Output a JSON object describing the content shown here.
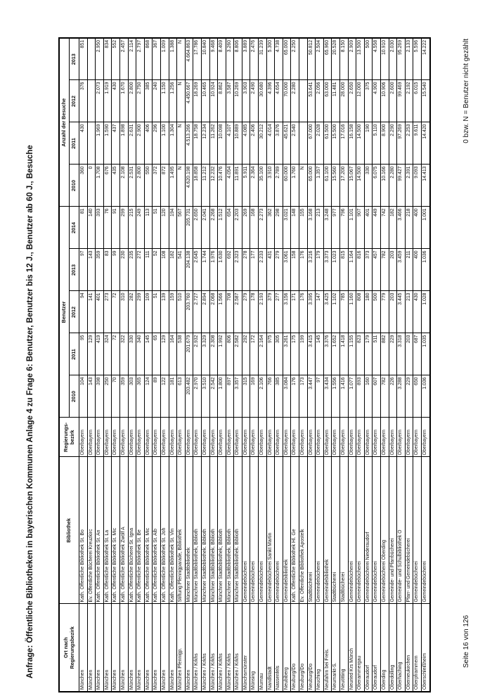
{
  "page": {
    "title": "Anfrage: Öffentliche Bibliotheken in bayerischen Kommunen Anlage 4 zu Frage 6: Benutzer, Benutzer bis 12 J., Benutzer ab 60 J., Besuche",
    "page_label": "Seite 16 von 126",
    "footnote": "0 bzw. N = Benutzer nicht gezählt"
  },
  "table": {
    "col_headers": {
      "ort": [
        "Ort nach",
        "Regierungsbezirk"
      ],
      "bibliothek": "Bibliothek",
      "regbez": [
        "Regierungs-",
        "bezirk"
      ]
    },
    "groups": [
      {
        "label": "Benutzer",
        "years": [
          "2010",
          "2011",
          "2012",
          "2013",
          "2014"
        ]
      },
      {
        "label": "Anzahl der Besuche",
        "years": [
          "2010",
          "2011",
          "2012",
          "2013"
        ]
      }
    ],
    "rows": [
      {
        "ort": "München",
        "bibliothek": "Kath. Öffentliche Bibliothek St. Bo",
        "bezirk": "Oberbayern",
        "benutzer": [
          "104",
          "95",
          "94",
          "97",
          "81"
        ],
        "besuche": [
          "360",
          "430",
          "376",
          "851"
        ]
      },
      {
        "ort": "München",
        "bibliothek": "Ev. Öffentliche Bücherei Kreuzkirc",
        "bezirk": "Oberbayern",
        "benutzer": [
          "143",
          "129",
          "141",
          "143",
          "140"
        ],
        "besuche": [
          "0",
          "",
          "",
          ""
        ]
      },
      {
        "ort": "München",
        "bibliothek": "Kath. Öffentliche Bibliothek St. An",
        "bezirk": "Oberbayern",
        "benutzer": [
          "398",
          "419",
          "401",
          "359",
          "393"
        ],
        "besuche": [
          "1.708",
          "1.969",
          "2.073",
          "2.950"
        ]
      },
      {
        "ort": "München",
        "bibliothek": "Kath. Öffentliche Bibliothek St. La",
        "bezirk": "Oberbayern",
        "benutzer": [
          "250",
          "324",
          "273",
          "83",
          "76"
        ],
        "besuche": [
          "676",
          "1.590",
          "1.919",
          "834"
        ]
      },
      {
        "ort": "München",
        "bibliothek": "Kath. Öffentliche Bibliothek St. Mic",
        "bezirk": "Oberbayern",
        "benutzer": [
          "70",
          "72",
          "72",
          "99",
          "91"
        ],
        "besuche": [
          "435",
          "437",
          "430",
          "552"
        ]
      },
      {
        "ort": "München",
        "bibliothek": "Kath. Öffentliche Bibliothek Zwölf A",
        "bezirk": "Oberbayern",
        "benutzer": [
          "359",
          "322",
          "310",
          "230",
          "299"
        ],
        "besuche": [
          "2.108",
          "1.898",
          "1.670",
          "2.457"
        ]
      },
      {
        "ort": "München",
        "bibliothek": "Kath. Öffentliche Bücherei St. Igna",
        "bezirk": "Oberbayern",
        "benutzer": [
          "303",
          "330",
          "282",
          "235",
          "215"
        ],
        "besuche": [
          "2.531",
          "2.631",
          "2.800",
          "2.114"
        ]
      },
      {
        "ort": "München",
        "bibliothek": "Kath. Öffentliche Bibliothek St. Be",
        "bezirk": "Oberbayern",
        "benutzer": [
          "365",
          "340",
          "299",
          "272",
          "249"
        ],
        "besuche": [
          "2.800",
          "2.900",
          "2.750",
          "2.797"
        ]
      },
      {
        "ort": "München",
        "bibliothek": "Kath. Öffentliche Bibliothek St. Mic",
        "bezirk": "Oberbayern",
        "benutzer": [
          "124",
          "145",
          "109",
          "111",
          "113"
        ],
        "besuche": [
          "550",
          "406",
          "385",
          "868"
        ]
      },
      {
        "ort": "München",
        "bibliothek": "Kath. Öffentliche Bibliothek St. Alb",
        "bezirk": "Oberbayern",
        "benutzer": [
          "89",
          "65",
          "51",
          "52",
          "51"
        ],
        "besuche": [
          "372",
          "296",
          "240",
          "367"
        ]
      },
      {
        "ort": "München",
        "bibliothek": "Kath. Öffentliche Bibliothek St. Joh",
        "bezirk": "Oberbayern",
        "benutzer": [
          "122",
          "129",
          "139",
          "108",
          "120"
        ],
        "besuche": [
          "872",
          "1.100",
          "1.150",
          "1.009"
        ]
      },
      {
        "ort": "München",
        "bibliothek": "Kath. Öffentliche Bibliothek St. Vin",
        "bezirk": "Oberbayern",
        "benutzer": [
          "181",
          "164",
          "159",
          "182",
          "194"
        ],
        "besuche": [
          "1.495",
          "1.304",
          "1.256",
          "1.388"
        ]
      },
      {
        "ort": "München Pfennigp.",
        "bibliothek": "Stiftung Pfennigparade, Bibliothek",
        "bezirk": "Oberbayern",
        "benutzer": [
          "613",
          "538",
          "510",
          "541",
          "567"
        ],
        "besuche": [
          "N",
          "N",
          "N",
          "N"
        ]
      },
      {
        "ort": "München",
        "bibliothek": "Münchner Stadtbibliothek",
        "bezirk": "Oberbayern",
        "benutzer": [
          "203.482",
          "201.679",
          "203.760",
          "204.138",
          "205.731"
        ],
        "besuche": [
          "4.620.198",
          "4.513.266",
          "4.450.667",
          "4.664.863"
        ]
      },
      {
        "ort": "München / Krkhs",
        "bibliothek": "Münchner Stadtbibliothek, Biblioth",
        "bezirk": "Oberbayern",
        "benutzer": [
          "2.970",
          "2.932",
          "2.727",
          "2.645",
          "2.650"
        ],
        "besuche": [
          "18.858",
          "18.758",
          "18.269",
          "17.786"
        ]
      },
      {
        "ort": "München / Krkhs",
        "bibliothek": "Münchner Stadtbibliothek. Biblioth",
        "bezirk": "Oberbayern",
        "benutzer": [
          "3.510",
          "3.329",
          "2.894",
          "1.744",
          "2.041"
        ],
        "besuche": [
          "11.212",
          "12.234",
          "10.465",
          "10.840"
        ]
      },
      {
        "ort": "München / Krkhs",
        "bibliothek": "Münchner Stadtbibliothek. Biblioth",
        "bezirk": "Oberbayern",
        "benutzer": [
          "2.542",
          "2.308",
          "2.068",
          "1.976",
          "2.268"
        ],
        "besuche": [
          "12.232",
          "11.262",
          "10.924",
          "9.468"
        ]
      },
      {
        "ort": "München / Krkhs",
        "bibliothek": "Münchner Stadtbibliothek, Biblioth",
        "bezirk": "Oberbayern",
        "benutzer": [
          "1.800",
          "1.992",
          "1.566",
          "1.630",
          "1.512"
        ],
        "besuche": [
          "10.476",
          "10.098",
          "8.862",
          "8.409"
        ]
      },
      {
        "ort": "München / Krkhs",
        "bibliothek": "Münchner Stadtbibliothek. Biblioth",
        "bezirk": "Oberbayern",
        "benutzer": [
          "897",
          "806",
          "708",
          "692",
          "654"
        ],
        "besuche": [
          "4.054",
          "4.107",
          "3.587",
          "3.260"
        ]
      },
      {
        "ort": "München / Krkhs",
        "bibliothek": "Münchner Stadtbibliothek. Biblioth",
        "bezirk": "Oberbayern",
        "benutzer": [
          "3.357",
          "2.582",
          "2.587",
          "2.323",
          "2.203"
        ],
        "besuche": [
          "11.891",
          "10.889",
          "10.269",
          "8.806"
        ]
      },
      {
        "ort": "Münchsmünster",
        "bibliothek": "Gemeindebücherei",
        "bezirk": "Oberbayern",
        "benutzer": [
          "315",
          "292",
          "279",
          "278",
          "269"
        ],
        "besuche": [
          "5.911",
          "4.085",
          "3.903",
          "3.889"
        ]
      },
      {
        "ort": "Münsing",
        "bibliothek": "Gemeindebücherei",
        "bezirk": "Oberbayern",
        "benutzer": [
          "169",
          "172",
          "178",
          "177",
          "168"
        ],
        "besuche": [
          "2.364",
          "2.406",
          "2.490",
          "2.476"
        ]
      },
      {
        "ort": "Murnau",
        "bibliothek": "Gemeindebücherei",
        "bezirk": "Oberbayern",
        "benutzer": [
          "2.106",
          "2.164",
          "2.193",
          "2.233",
          "2.273"
        ],
        "besuche": [
          "35.100",
          "30.212",
          "30.680",
          "31.239"
        ]
      },
      {
        "ort": "Nandlstadt",
        "bibliothek": "Gemeindebücherei Sankt Martin",
        "bezirk": "Oberbayern",
        "benutzer": [
          "766",
          "975",
          "379",
          "431",
          "362"
        ],
        "besuche": [
          "3.910",
          "4.014",
          "4.396",
          "5.300"
        ]
      },
      {
        "ort": "Nassenfels",
        "bibliothek": "Gemeindebücherei",
        "bezirk": "Oberbayern",
        "benutzer": [
          "385",
          "305",
          "277",
          "279",
          "298"
        ],
        "besuche": [
          "2.789",
          "3.876",
          "4.654",
          "4.738"
        ]
      },
      {
        "ort": "Neubiberg",
        "bibliothek": "Gemeindebibliothek",
        "bezirk": "Oberbayern",
        "benutzer": [
          "3.084",
          "3.261",
          "3.156",
          "3.061",
          "3.021"
        ],
        "besuche": [
          "60.000",
          "45.621",
          "70.000",
          "65.000"
        ]
      },
      {
        "ort": "Neuburg/Do",
        "bibliothek": "Kath. Öffentliche Bibliothek Hl. Ge",
        "bezirk": "Oberbayern",
        "benutzer": [
          "176",
          "175",
          "171",
          "158",
          "148"
        ],
        "besuche": [
          "1.760",
          "2.540",
          "2.280",
          "2.250"
        ]
      },
      {
        "ort": "Neuburg/Do",
        "bibliothek": "Ev. Öffentliche Bibliothek Apostelk",
        "bezirk": "Oberbayern",
        "benutzer": [
          "173",
          "199",
          "176",
          "176",
          "155"
        ],
        "besuche": [
          "N",
          "",
          "",
          ""
        ]
      },
      {
        "ort": "Neuburg/Do",
        "bibliothek": "Stadtbücherei",
        "bezirk": "Oberbayern",
        "benutzer": [
          "3.447",
          "3.415",
          "3.395",
          "3.216",
          "3.168"
        ],
        "besuche": [
          "65.000",
          "67.000",
          "53.641",
          "50.812"
        ]
      },
      {
        "ort": "Neuching",
        "bibliothek": "Gemeindebücherei",
        "bezirk": "Oberbayern",
        "benutzer": [
          "97",
          "145",
          "147",
          "179",
          "213"
        ],
        "besuche": [
          "1.357",
          "2.028",
          "2.056",
          "2.504"
        ]
      },
      {
        "ort": "Neufahrn bei Freis.",
        "bibliothek": "Gemeindebibliothek",
        "bezirk": "Oberbayern",
        "benutzer": [
          "3.434",
          "3.376",
          "3.425",
          "3.373",
          "3.248"
        ],
        "besuche": [
          "61.100",
          "61.500",
          "63.000",
          "65.960"
        ]
      },
      {
        "ort": "Neumarkt-S.",
        "bibliothek": "Stadtbücherei",
        "bezirk": "Oberbayern",
        "benutzer": [
          "1.556",
          "1.652",
          "1.102",
          "1.023",
          "977"
        ],
        "besuche": [
          "15.560",
          "15.500",
          "11.481",
          "20.528"
        ]
      },
      {
        "ort": "Neuötting",
        "bibliothek": "Stadtbücherei",
        "bezirk": "Oberbayern",
        "benutzer": [
          "1.416",
          "1.418",
          "785",
          "815",
          "796"
        ],
        "besuche": [
          "17.200",
          "17.016",
          "28.000",
          "8.150"
        ]
      },
      {
        "ort": "Neuried Krs Münch",
        "bibliothek": "Gemeindebücherei",
        "bezirk": "Oberbayern",
        "benutzer": [
          "1.077",
          "1.155",
          "1.160",
          "1.164",
          "1.101"
        ],
        "besuche": [
          "15.067",
          "16.158",
          "2.650",
          "2.909"
        ]
      },
      {
        "ort": "Oberammergau",
        "bibliothek": "Gemeindebücherei",
        "bezirk": "Oberbayern",
        "benutzer": [
          "893",
          "823",
          "808",
          "816",
          "907"
        ],
        "besuche": [
          "14.500",
          "14.500",
          "12.000",
          "13.500"
        ]
      },
      {
        "ort": "Oberaudorf",
        "bibliothek": "Gemeindebücherei Niederaudorf",
        "bezirk": "Oberbayern",
        "benutzer": [
          "160",
          "179",
          "180",
          "373",
          "401"
        ],
        "besuche": [
          "330",
          "190",
          "375",
          "500"
        ]
      },
      {
        "ort": "Oberaudorf",
        "bibliothek": "Gemeindebücherei",
        "bezirk": "Oberbayern",
        "benutzer": [
          "607",
          "511",
          "500",
          "457",
          "449"
        ],
        "besuche": [
          "6.075",
          "5.110",
          "4.900",
          "4.558"
        ]
      },
      {
        "ort": "Oberding",
        "bibliothek": "Gemeindebücherei Oberding",
        "bezirk": "Oberbayern",
        "benutzer": [
          "782",
          "882",
          "779",
          "782",
          "742"
        ],
        "besuche": [
          "10.166",
          "8.900",
          "10.906",
          "10.910"
        ]
      },
      {
        "ort": "Oberdolling",
        "bibliothek": "Gemeinde- und Pfarrbücherei",
        "bezirk": "Oberbayern",
        "benutzer": [
          "226",
          "229",
          "203",
          "203",
          "182"
        ],
        "besuche": [
          "2.280",
          "2.290",
          "2.600",
          "2.030"
        ]
      },
      {
        "ort": "Oberhaching",
        "bibliothek": "Gemeinde- und Schulbibliothek O",
        "bezirk": "Oberbayern",
        "benutzer": [
          "3.288",
          "3.318",
          "3.445",
          "3.459",
          "3.466"
        ],
        "besuche": [
          "99.427",
          "97.269",
          "99.469",
          "95.269"
        ]
      },
      {
        "ort": "Oberneukirchen",
        "bibliothek": "Pfarr- und Gemeindebücherei",
        "bezirk": "Oberbayern",
        "benutzer": [
          "229",
          "203",
          "213",
          "211",
          "218"
        ],
        "besuche": [
          "2.391",
          "2.253",
          "2.192",
          "2.133"
        ]
      },
      {
        "ort": "Oberpframmern",
        "bibliothek": "Gemeindebücherei",
        "bezirk": "Oberbayern",
        "benutzer": [
          "650",
          "687",
          "430",
          "400",
          "400"
        ],
        "besuche": [
          "9.093",
          "9.611",
          "6.015",
          "5.596"
        ]
      },
      {
        "ort": "Oberschleißheim",
        "bibliothek": "Gemeindebücherei",
        "bezirk": "Oberbayern",
        "benutzer": [
          "1.036",
          "1.035",
          "1.028",
          "1.036",
          "1.001"
        ],
        "besuche": [
          "14.413",
          "14.420",
          "15.540",
          "14.222"
        ]
      }
    ]
  }
}
